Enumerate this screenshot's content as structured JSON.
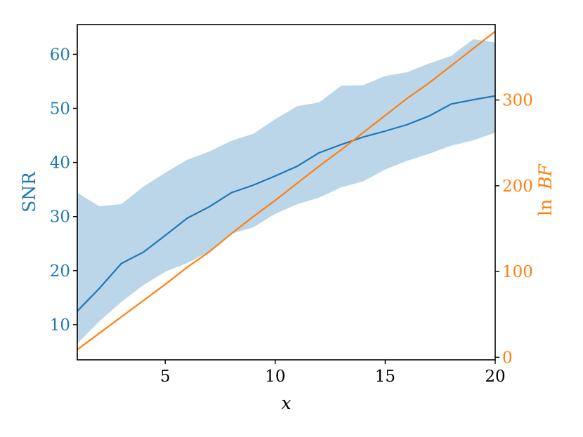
{
  "chart_data": {
    "type": "line",
    "xlabel": "x",
    "y_left_label": "SNR",
    "y_right_label_prefix": "ln",
    "y_right_label_symbol": "BF",
    "xlim": [
      1,
      20
    ],
    "y_left_lim": [
      3.5,
      65.5
    ],
    "y_right_lim": [
      -3,
      388
    ],
    "x_ticks": [
      5,
      10,
      15,
      20
    ],
    "y_left_ticks": [
      10,
      20,
      30,
      40,
      50,
      60
    ],
    "y_right_ticks": [
      0,
      100,
      200,
      300
    ],
    "grid": false,
    "x": [
      1,
      2,
      3,
      4,
      5,
      6,
      7,
      8,
      9,
      10,
      11,
      12,
      13,
      14,
      15,
      16,
      17,
      18,
      19,
      20
    ],
    "series": [
      {
        "axis": "left",
        "type": "line",
        "color": "#1f77b4",
        "values": [
          12.5,
          16.7,
          21.3,
          23.4,
          26.5,
          29.7,
          31.8,
          34.4,
          35.8,
          37.5,
          39.3,
          41.8,
          43.3,
          44.7,
          45.8,
          47.0,
          48.6,
          50.8,
          51.6,
          52.3
        ]
      },
      {
        "axis": "left",
        "type": "band",
        "color": "#1f77b4",
        "opacity": 0.3,
        "lower": [
          6.5,
          10.6,
          14.2,
          17.3,
          19.8,
          21.4,
          23.5,
          26.8,
          28.0,
          30.5,
          32.3,
          33.5,
          35.4,
          36.5,
          38.7,
          40.3,
          41.6,
          43.1,
          44.1,
          45.5
        ],
        "upper": [
          34.4,
          31.9,
          32.3,
          35.5,
          38.1,
          40.5,
          42.0,
          44.0,
          45.3,
          48.0,
          50.4,
          51.1,
          54.2,
          54.3,
          56.0,
          56.7,
          58.3,
          59.7,
          62.8,
          62.2
        ]
      },
      {
        "axis": "right",
        "type": "line",
        "color": "#ff7f0e",
        "values": [
          9,
          28,
          47,
          66,
          85,
          105,
          123,
          144,
          164,
          183,
          203,
          223,
          242,
          262,
          282,
          302,
          320,
          340,
          360,
          380
        ]
      }
    ],
    "colors": {
      "left_axis": "#1f77b4",
      "right_axis": "#ff7f0e",
      "frame": "#000000"
    }
  }
}
